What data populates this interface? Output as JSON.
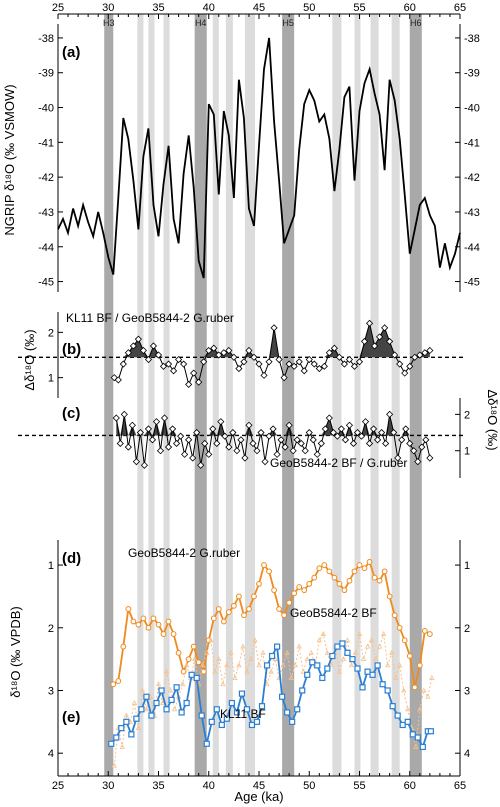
{
  "figure": {
    "x_axis_label": "Age (ka)",
    "x_ticks": [
      25,
      30,
      35,
      40,
      45,
      50,
      55,
      60,
      65
    ],
    "heinrich_labels": [
      "H3",
      "H4",
      "H5",
      "H6"
    ],
    "panel_labels": [
      "(a)",
      "(b)",
      "(c)",
      "(d)",
      "(e)"
    ],
    "y_label_a": "NGRIP δ¹⁸O (‰ VSMOW)",
    "y_label_b": "Δδ¹⁸O (‰)",
    "y_label_c": "Δδ¹⁸O (‰)",
    "y_label_de": "δ¹⁸O (‰ VPDB)",
    "series_label_b": "KL11 BF / GeoB5844-2 G.ruber",
    "series_label_c": "GeoB5844-2 BF / G.ruber",
    "series_label_d_gruber": "GeoB5844-2 G.ruber",
    "series_label_d_bf": "GeoB5844-2 BF",
    "series_label_e": "KL11 BF",
    "colors": {
      "ngrip": "#000000",
      "gruber": "#f08a1c",
      "geob_bf": "#f6c18e",
      "kl11": "#2a7fd4",
      "heinrich_band": "#a9a9a9",
      "stadial_band": "#dcdcdc"
    }
  },
  "chart_data": [
    {
      "type": "line",
      "panel": "(a)",
      "ylabel": "NGRIP δ¹⁸O (‰ VSMOW)",
      "xlim": [
        25,
        65
      ],
      "ylim": [
        -45.3,
        -37.6
      ],
      "y_ticks": [
        -38,
        -39,
        -40,
        -41,
        -42,
        -43,
        -44,
        -45
      ],
      "heinrich_bands": [
        {
          "name": "H3",
          "range": [
            29.6,
            30.5
          ]
        },
        {
          "name": "H4",
          "range": [
            38.6,
            39.8
          ]
        },
        {
          "name": "H5",
          "range": [
            47.3,
            48.5
          ]
        },
        {
          "name": "H6",
          "range": [
            60.0,
            61.2
          ]
        }
      ],
      "stadial_bands": [
        [
          32.9,
          33.5
        ],
        [
          34.0,
          34.6
        ],
        [
          35.5,
          36.1
        ],
        [
          40.4,
          41.0
        ],
        [
          41.7,
          42.4
        ],
        [
          43.6,
          44.6
        ],
        [
          52.3,
          53.2
        ],
        [
          54.5,
          55.1
        ],
        [
          56.1,
          56.9
        ],
        [
          58.2,
          59.0
        ]
      ],
      "series": [
        {
          "x": [
            25.0,
            25.5,
            26.0,
            26.5,
            27.0,
            27.5,
            28.0,
            28.5,
            29.0,
            29.5,
            30.0,
            30.5,
            31.0,
            31.5,
            32.0,
            32.5,
            33.0,
            33.5,
            34.0,
            34.5,
            35.0,
            35.5,
            36.0,
            36.5,
            37.0,
            37.5,
            38.0,
            38.5,
            39.0,
            39.5,
            40.0,
            40.5,
            41.0,
            41.5,
            42.0,
            42.5,
            43.0,
            43.5,
            44.0,
            44.5,
            45.0,
            45.5,
            46.0,
            46.5,
            47.0,
            47.5,
            48.0,
            48.5,
            49.0,
            49.5,
            50.0,
            50.5,
            51.0,
            51.5,
            52.0,
            52.5,
            53.0,
            53.5,
            54.0,
            54.5,
            55.0,
            55.5,
            56.0,
            56.5,
            57.0,
            57.5,
            58.0,
            58.5,
            59.0,
            59.5,
            60.0,
            60.5,
            61.0,
            61.5,
            62.0,
            62.5,
            63.0,
            63.5,
            64.0,
            64.5,
            65.0
          ],
          "y": [
            -43.5,
            -43.2,
            -43.6,
            -42.9,
            -43.4,
            -42.8,
            -43.3,
            -43.7,
            -43.0,
            -43.6,
            -44.3,
            -44.8,
            -42.6,
            -40.3,
            -40.9,
            -42.1,
            -43.5,
            -41.4,
            -40.6,
            -42.8,
            -43.7,
            -42.2,
            -41.1,
            -43.2,
            -43.9,
            -41.9,
            -40.8,
            -42.3,
            -44.4,
            -44.9,
            -39.9,
            -40.2,
            -42.5,
            -40.1,
            -40.8,
            -42.6,
            -39.2,
            -40.3,
            -42.9,
            -43.4,
            -41.1,
            -38.9,
            -38.0,
            -40.4,
            -42.1,
            -43.9,
            -43.5,
            -43.1,
            -41.2,
            -39.9,
            -39.5,
            -39.8,
            -40.4,
            -40.2,
            -40.9,
            -42.4,
            -41.2,
            -39.7,
            -39.4,
            -42.1,
            -40.1,
            -39.3,
            -38.9,
            -39.6,
            -40.2,
            -41.8,
            -39.2,
            -39.8,
            -40.9,
            -42.5,
            -44.2,
            -43.5,
            -42.8,
            -42.6,
            -43.1,
            -43.4,
            -44.6,
            -43.9,
            -44.6,
            -44.2,
            -43.6
          ]
        }
      ]
    },
    {
      "type": "line",
      "panel": "(b)",
      "title": "KL11 BF / GeoB5844-2 G.ruber",
      "ylabel": "Δδ¹⁸O (‰)",
      "xlim": [
        25,
        65
      ],
      "ylim": [
        0.55,
        2.45
      ],
      "y_ticks": [
        1,
        2
      ],
      "reference_line": 1.45,
      "series": [
        {
          "x": [
            30.6,
            31.0,
            31.5,
            32.0,
            32.5,
            33.0,
            33.5,
            34.0,
            34.5,
            35.0,
            35.5,
            36.0,
            36.5,
            37.0,
            37.5,
            38.0,
            38.5,
            39.0,
            39.5,
            40.0,
            40.5,
            41.0,
            41.5,
            42.0,
            42.5,
            43.0,
            43.5,
            44.0,
            44.5,
            45.0,
            45.5,
            46.0,
            46.5,
            47.0,
            47.5,
            48.0,
            48.5,
            49.0,
            49.5,
            50.0,
            50.5,
            51.0,
            51.5,
            52.0,
            52.5,
            53.0,
            53.5,
            54.0,
            54.5,
            55.0,
            55.5,
            56.0,
            56.5,
            57.0,
            57.5,
            58.0,
            58.5,
            59.0,
            59.5,
            60.0,
            60.5,
            61.0,
            61.5,
            62.0
          ],
          "y": [
            1.0,
            0.95,
            1.3,
            1.55,
            1.7,
            1.85,
            1.6,
            1.4,
            1.7,
            1.5,
            1.25,
            1.3,
            1.15,
            1.4,
            1.3,
            0.85,
            1.1,
            0.9,
            1.35,
            1.6,
            1.65,
            1.5,
            1.55,
            1.6,
            1.45,
            1.2,
            1.35,
            1.6,
            1.45,
            1.3,
            1.05,
            1.35,
            2.1,
            1.4,
            1.0,
            1.3,
            1.25,
            1.35,
            1.15,
            1.4,
            1.3,
            1.2,
            1.25,
            1.55,
            1.65,
            1.45,
            1.3,
            1.4,
            1.25,
            1.35,
            1.8,
            2.2,
            1.7,
            1.9,
            2.1,
            1.8,
            1.5,
            1.3,
            1.1,
            1.25,
            1.45,
            1.5,
            1.55,
            1.6
          ]
        }
      ]
    },
    {
      "type": "line",
      "panel": "(c)",
      "title": "GeoB5844-2 BF / G.ruber",
      "ylabel": "Δδ¹⁸O (‰)",
      "xlim": [
        25,
        65
      ],
      "ylim": [
        0.25,
        2.45
      ],
      "y_ticks": [
        1,
        2
      ],
      "reference_line": 1.42,
      "series": [
        {
          "x": [
            30.8,
            31.2,
            31.6,
            32.0,
            32.4,
            32.8,
            33.2,
            33.6,
            34.0,
            34.4,
            34.8,
            35.2,
            35.6,
            36.0,
            36.4,
            36.8,
            37.2,
            37.6,
            38.0,
            38.4,
            38.8,
            39.2,
            39.6,
            40.0,
            40.4,
            40.8,
            41.2,
            41.6,
            42.0,
            42.4,
            42.8,
            43.2,
            43.6,
            44.0,
            44.4,
            44.8,
            45.2,
            45.6,
            46.0,
            46.4,
            46.8,
            47.2,
            47.6,
            48.0,
            48.4,
            48.8,
            49.2,
            49.6,
            50.0,
            50.4,
            50.8,
            51.2,
            51.6,
            52.0,
            52.4,
            52.8,
            53.2,
            53.6,
            54.0,
            54.4,
            54.8,
            55.2,
            55.6,
            56.0,
            56.4,
            56.8,
            57.2,
            57.6,
            58.0,
            58.4,
            58.8,
            59.2,
            59.6,
            60.0,
            60.4,
            60.8,
            61.2,
            61.6,
            62.0
          ],
          "y": [
            1.9,
            1.2,
            2.0,
            1.1,
            1.7,
            0.7,
            1.5,
            0.6,
            1.6,
            1.3,
            1.8,
            1.0,
            1.9,
            1.1,
            1.6,
            1.2,
            1.4,
            0.9,
            1.3,
            0.8,
            1.5,
            0.6,
            1.2,
            0.9,
            1.6,
            1.2,
            1.8,
            1.4,
            1.1,
            1.5,
            1.0,
            1.3,
            0.8,
            1.7,
            1.2,
            1.0,
            1.5,
            0.7,
            1.4,
            1.6,
            0.9,
            1.3,
            1.1,
            1.7,
            1.0,
            1.3,
            1.2,
            1.0,
            1.5,
            1.3,
            0.9,
            1.2,
            1.6,
            1.9,
            1.5,
            1.4,
            1.6,
            1.3,
            1.7,
            1.2,
            1.5,
            1.4,
            1.8,
            1.2,
            1.6,
            1.3,
            1.5,
            1.2,
            2.0,
            1.5,
            0.8,
            1.3,
            1.6,
            1.2,
            1.0,
            0.7,
            1.1,
            1.3,
            0.8
          ]
        }
      ]
    },
    {
      "type": "line",
      "panel": "(d)/(e)",
      "ylabel": "δ¹⁸O (‰ VPDB)",
      "xlim": [
        25,
        65
      ],
      "ylim": [
        4.3,
        0.6
      ],
      "y_ticks": [
        1,
        2,
        3,
        4
      ],
      "y_reversed": true,
      "series": [
        {
          "name": "GeoB5844-2 G.ruber",
          "color": "#f08a1c",
          "x": [
            30.5,
            31.0,
            31.5,
            32.0,
            32.5,
            33.0,
            33.5,
            34.0,
            34.5,
            35.0,
            35.5,
            36.0,
            36.5,
            37.0,
            37.5,
            38.0,
            38.5,
            39.0,
            39.5,
            40.0,
            40.5,
            41.0,
            41.5,
            42.0,
            42.5,
            43.0,
            43.5,
            44.0,
            44.5,
            45.0,
            45.5,
            46.0,
            46.5,
            47.0,
            47.5,
            48.0,
            48.5,
            49.0,
            49.5,
            50.0,
            50.5,
            51.0,
            51.5,
            52.0,
            52.5,
            53.0,
            53.5,
            54.0,
            54.5,
            55.0,
            55.5,
            56.0,
            56.5,
            57.0,
            57.5,
            58.0,
            58.5,
            59.0,
            59.5,
            60.0,
            60.5,
            61.0,
            61.5,
            62.0
          ],
          "y": [
            2.9,
            2.85,
            2.3,
            1.7,
            1.9,
            1.95,
            1.85,
            2.0,
            1.85,
            1.95,
            2.1,
            1.9,
            2.1,
            2.4,
            2.7,
            2.5,
            2.3,
            2.55,
            2.7,
            2.2,
            1.85,
            1.7,
            1.9,
            1.75,
            1.65,
            1.5,
            1.8,
            1.7,
            1.5,
            1.3,
            1.0,
            1.1,
            1.4,
            1.7,
            1.8,
            1.6,
            1.45,
            1.35,
            1.4,
            1.3,
            1.2,
            1.05,
            1.0,
            1.1,
            1.2,
            1.3,
            1.4,
            1.25,
            1.1,
            1.0,
            1.05,
            0.95,
            1.2,
            1.25,
            1.1,
            1.5,
            1.8,
            2.0,
            2.2,
            2.45,
            2.95,
            2.6,
            2.05,
            2.1
          ]
        },
        {
          "name": "GeoB5844-2 BF",
          "color": "#f6c18e",
          "x": [
            30.6,
            31.0,
            31.4,
            31.8,
            32.2,
            32.6,
            33.0,
            33.4,
            33.8,
            34.2,
            34.6,
            35.0,
            35.4,
            35.8,
            36.2,
            36.6,
            37.0,
            37.4,
            37.8,
            38.2,
            38.6,
            39.0,
            39.4,
            39.8,
            40.2,
            40.6,
            41.0,
            41.4,
            41.8,
            42.2,
            42.6,
            43.0,
            43.4,
            43.8,
            44.2,
            44.6,
            45.0,
            45.4,
            45.8,
            46.2,
            46.6,
            47.0,
            47.4,
            47.8,
            48.2,
            48.6,
            49.0,
            49.4,
            49.8,
            50.2,
            50.6,
            51.0,
            51.4,
            51.8,
            52.2,
            52.6,
            53.0,
            53.4,
            53.8,
            54.2,
            54.6,
            55.0,
            55.4,
            55.8,
            56.2,
            56.6,
            57.0,
            57.4,
            57.8,
            58.2,
            58.6,
            59.0,
            59.4,
            59.8,
            60.2,
            60.6,
            61.0,
            61.4,
            61.8,
            62.2
          ],
          "y": [
            4.2,
            3.6,
            3.9,
            3.4,
            3.5,
            3.2,
            3.6,
            3.0,
            3.3,
            3.1,
            3.4,
            2.9,
            3.2,
            2.7,
            3.0,
            3.3,
            3.1,
            2.9,
            2.6,
            2.8,
            2.5,
            2.9,
            2.6,
            2.4,
            2.2,
            2.7,
            2.5,
            2.9,
            2.6,
            2.4,
            2.8,
            2.6,
            2.3,
            2.7,
            2.5,
            2.2,
            2.6,
            2.4,
            2.9,
            2.7,
            2.5,
            2.8,
            2.6,
            2.4,
            2.8,
            2.6,
            2.3,
            2.7,
            2.5,
            2.4,
            2.6,
            2.2,
            2.1,
            2.4,
            2.6,
            2.3,
            2.7,
            2.5,
            2.2,
            2.6,
            2.4,
            2.1,
            2.5,
            2.3,
            2.2,
            2.5,
            2.3,
            2.1,
            2.6,
            2.4,
            2.8,
            2.6,
            3.0,
            3.3,
            3.6,
            3.9,
            3.3,
            3.0,
            3.1,
            2.8
          ]
        },
        {
          "name": "KL11 BF",
          "color": "#2a7fd4",
          "x": [
            30.3,
            30.8,
            31.3,
            31.8,
            32.3,
            32.8,
            33.3,
            33.8,
            34.3,
            34.8,
            35.3,
            35.8,
            36.3,
            36.8,
            37.3,
            37.8,
            38.3,
            38.8,
            39.3,
            39.8,
            40.3,
            40.8,
            41.3,
            41.8,
            42.3,
            42.8,
            43.3,
            43.8,
            44.3,
            44.8,
            45.3,
            45.8,
            46.3,
            46.8,
            47.3,
            47.8,
            48.3,
            48.8,
            49.3,
            49.8,
            50.3,
            50.8,
            51.3,
            51.8,
            52.3,
            52.8,
            53.3,
            53.8,
            54.3,
            54.8,
            55.3,
            55.8,
            56.3,
            56.8,
            57.3,
            57.8,
            58.3,
            58.8,
            59.3,
            59.8,
            60.3,
            60.8,
            61.3,
            61.8,
            62.1
          ],
          "y": [
            3.85,
            3.75,
            3.6,
            3.5,
            3.7,
            3.45,
            3.3,
            3.1,
            3.4,
            3.2,
            3.0,
            3.3,
            3.15,
            2.95,
            3.35,
            3.2,
            2.75,
            2.8,
            3.4,
            3.85,
            3.5,
            3.3,
            3.55,
            3.45,
            3.2,
            3.35,
            3.05,
            3.3,
            3.55,
            3.5,
            3.25,
            2.6,
            2.45,
            2.3,
            3.1,
            3.35,
            3.5,
            3.3,
            3.0,
            2.75,
            2.55,
            2.6,
            2.8,
            2.65,
            2.45,
            2.3,
            2.25,
            2.4,
            2.5,
            2.65,
            2.95,
            2.7,
            2.75,
            2.6,
            2.9,
            3.0,
            3.25,
            3.4,
            3.55,
            3.5,
            3.7,
            3.75,
            3.9,
            3.65,
            3.65
          ]
        }
      ]
    }
  ]
}
